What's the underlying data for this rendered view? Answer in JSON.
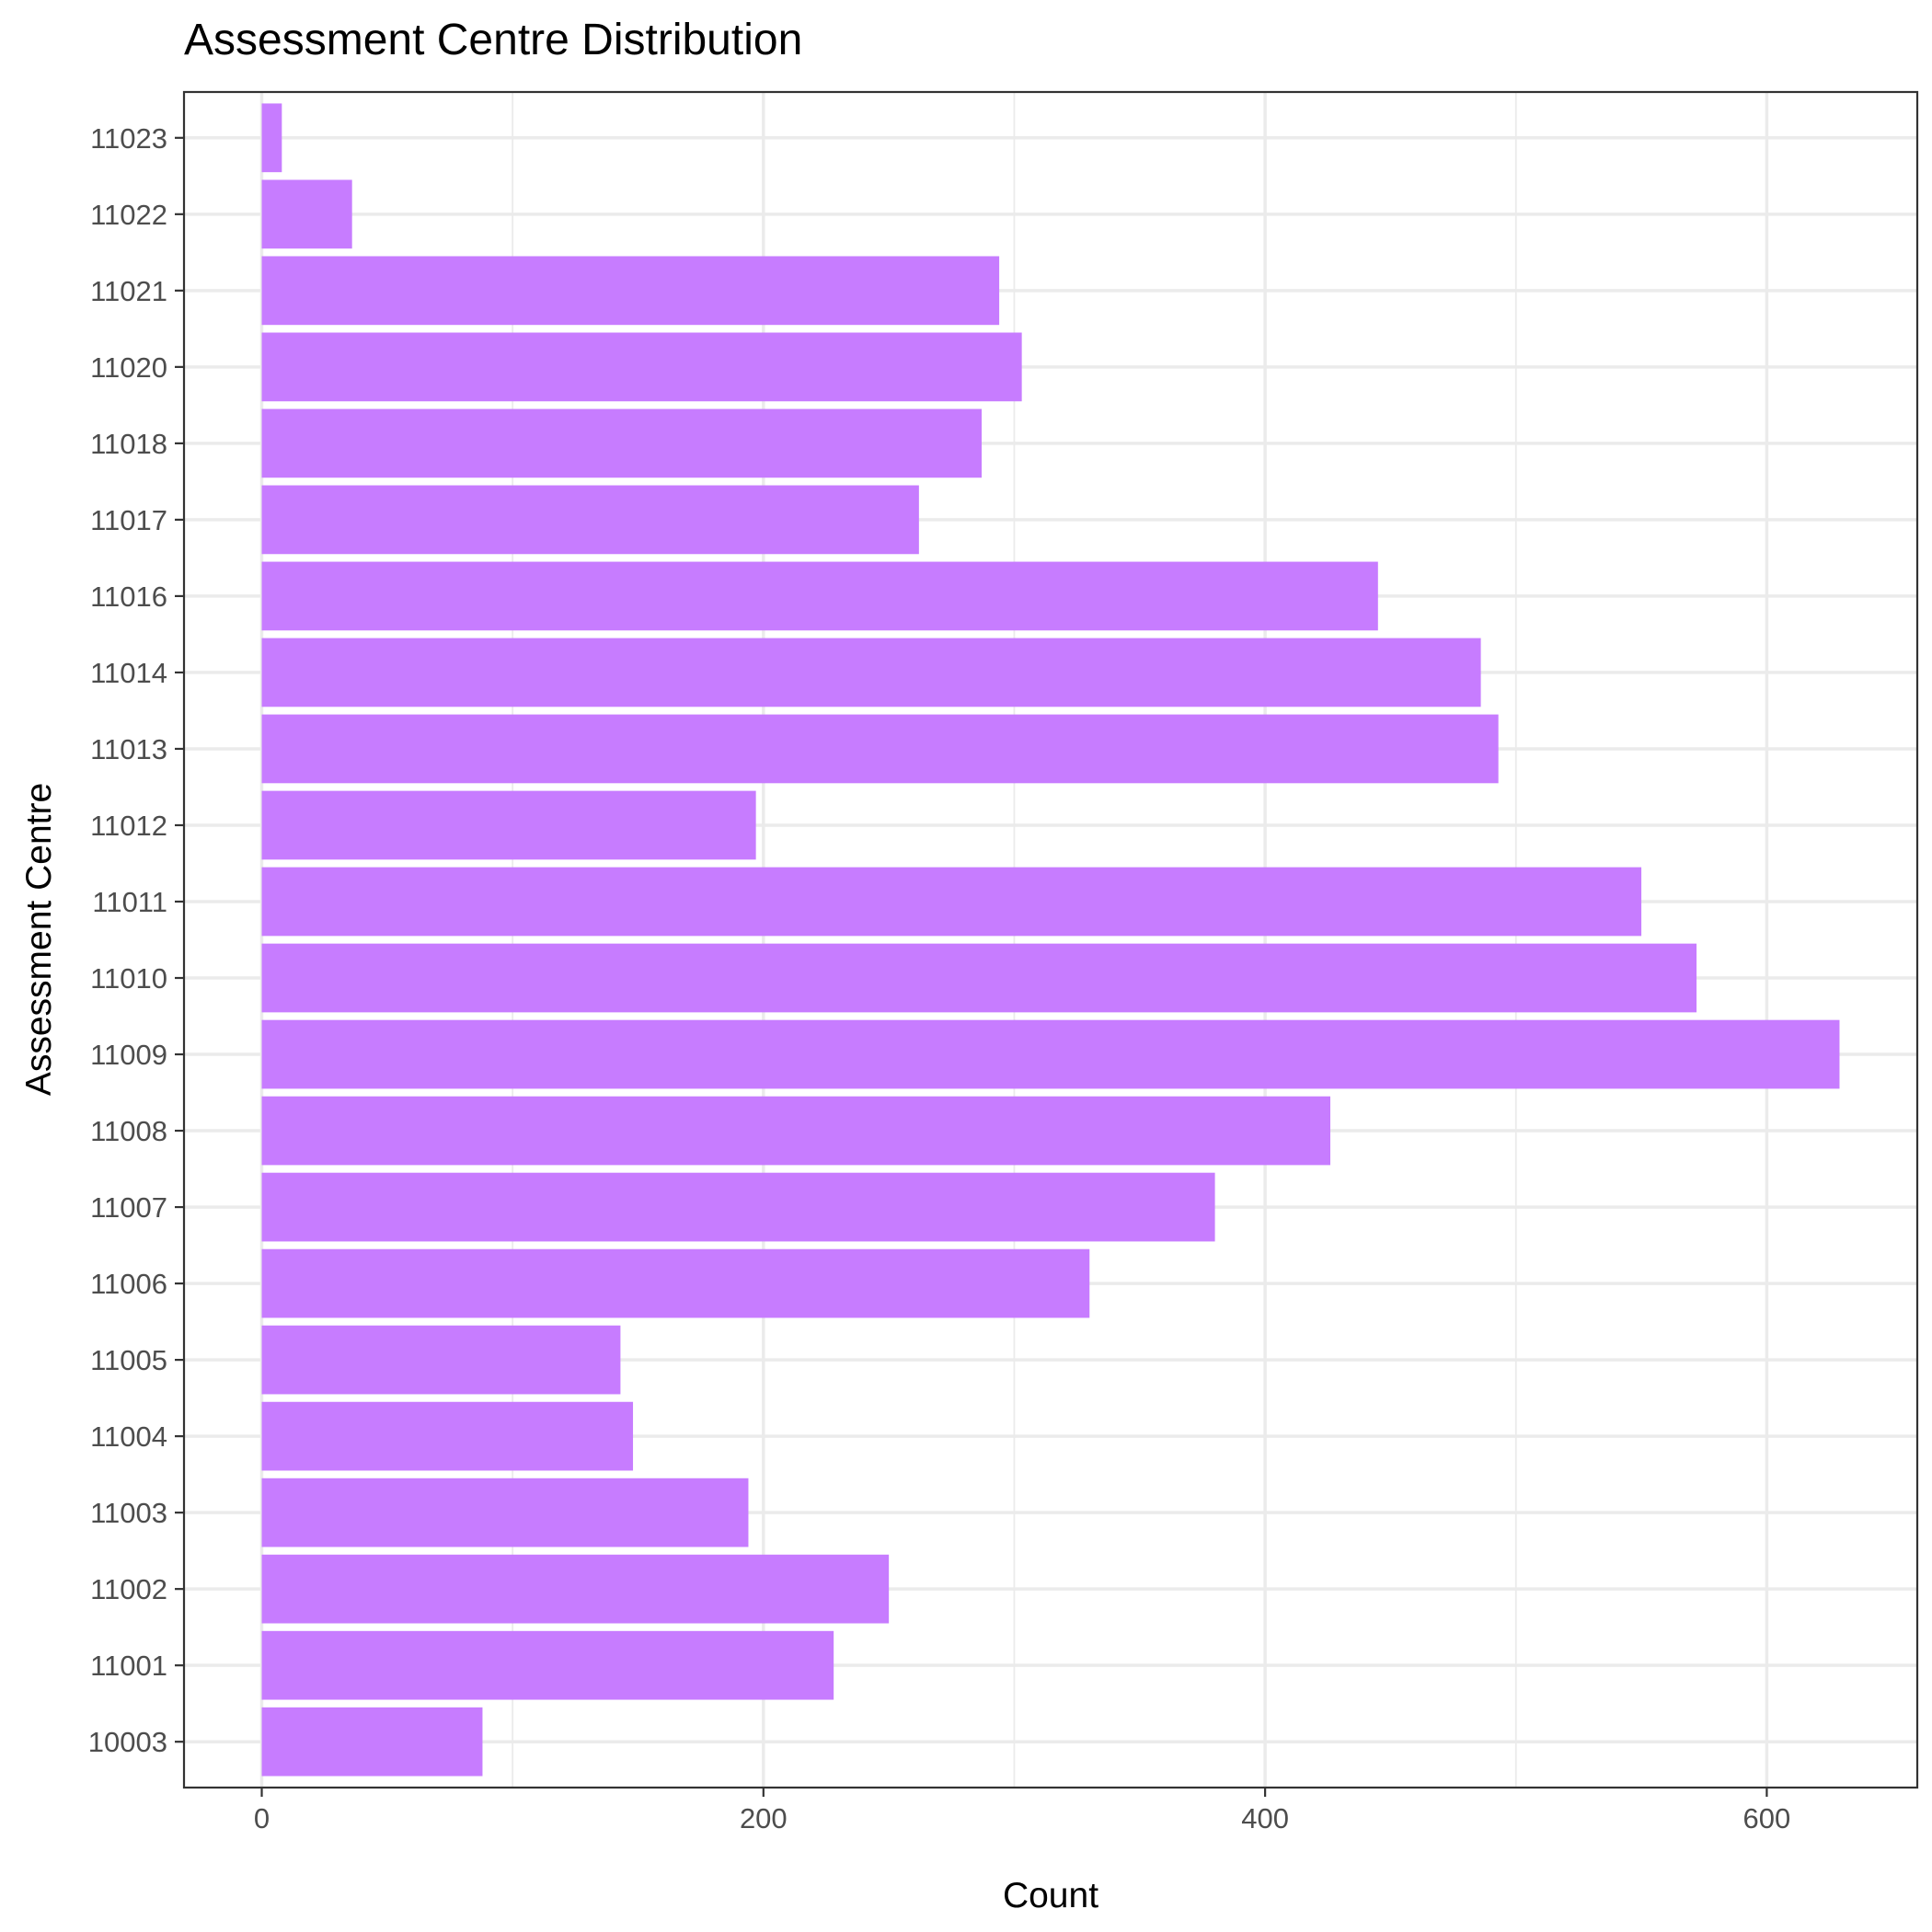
{
  "chart_data": {
    "type": "bar",
    "orientation": "horizontal",
    "title": "Assessment Centre Distribution",
    "xlabel": "Count",
    "ylabel": "Assessment Centre",
    "categories": [
      "10003",
      "11001",
      "11002",
      "11003",
      "11004",
      "11005",
      "11006",
      "11007",
      "11008",
      "11009",
      "11010",
      "11011",
      "11012",
      "11013",
      "11014",
      "11016",
      "11017",
      "11018",
      "11020",
      "11021",
      "11022",
      "11023"
    ],
    "values": [
      88,
      228,
      250,
      194,
      148,
      143,
      330,
      380,
      426,
      629,
      572,
      550,
      197,
      493,
      486,
      445,
      262,
      287,
      303,
      294,
      36,
      8
    ],
    "xlim": [
      -31,
      660
    ],
    "xticks": [
      0,
      200,
      400,
      600
    ],
    "xtick_labels": [
      "0",
      "200",
      "400",
      "600"
    ],
    "grid": true,
    "bar_color": "#c77cff",
    "theme": "bw"
  }
}
